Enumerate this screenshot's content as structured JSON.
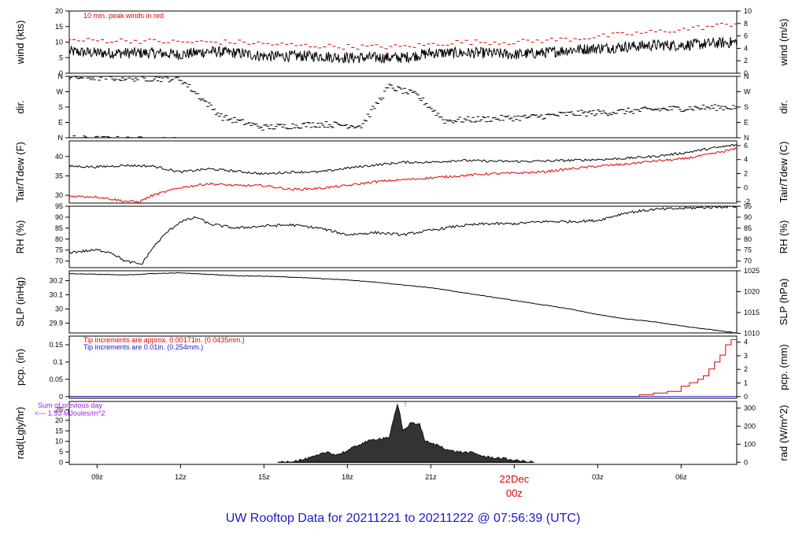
{
  "page_title": "UW Rooftop Data for 20211221  to  20211222 @ 07:56:39  (UTC)",
  "colors": {
    "black": "#000000",
    "red": "#e00000",
    "blue": "#1a1acd",
    "purple": "#a020f0"
  },
  "x_axis": {
    "start_hour": 8,
    "end_hour": 32,
    "ticks": [
      {
        "hour": 9,
        "label": "09z"
      },
      {
        "hour": 12,
        "label": "12z"
      },
      {
        "hour": 15,
        "label": "15z"
      },
      {
        "hour": 18,
        "label": "18z"
      },
      {
        "hour": 21,
        "label": "21z"
      },
      {
        "hour": 24,
        "label": ""
      },
      {
        "hour": 27,
        "label": "03z"
      },
      {
        "hour": 30,
        "label": "06z"
      }
    ],
    "day_label": "22Dec",
    "day_label_time": "00z"
  },
  "chart_data": [
    {
      "type": "line",
      "id": "wind",
      "ylabel": "wind (kts)",
      "ylabel_right": "wind (m/s)",
      "ylim": [
        0,
        20
      ],
      "yticks": [
        0,
        5,
        10,
        15,
        20
      ],
      "right_ylim": [
        0,
        10
      ],
      "right_yticks": [
        0,
        2,
        4,
        6,
        8,
        10
      ],
      "annotation": "10 min. peak winds in red",
      "series": [
        {
          "name": "wind",
          "color": "#000000",
          "noise": 1.8,
          "x": [
            8,
            9,
            10,
            11,
            12,
            13,
            14,
            15,
            16,
            17,
            18,
            19,
            20,
            21,
            22,
            23,
            24,
            25,
            26,
            27,
            28,
            29,
            30,
            31,
            32
          ],
          "y": [
            7,
            6.5,
            6.5,
            6.5,
            6,
            7,
            6.5,
            5.5,
            5.5,
            5.5,
            5,
            5,
            5,
            6.5,
            6.5,
            6.5,
            6,
            6.5,
            7.5,
            8,
            8.5,
            9,
            9,
            9.5,
            10
          ]
        },
        {
          "name": "10 min. peak winds",
          "color": "#e00000",
          "noise": 0.8,
          "x": [
            8,
            10,
            12,
            14,
            16,
            18,
            20,
            22,
            24,
            26,
            28,
            30,
            32
          ],
          "y": [
            10.5,
            10.5,
            10,
            10,
            9,
            8.5,
            8.5,
            10,
            10,
            11,
            12.5,
            14,
            16
          ]
        }
      ]
    },
    {
      "type": "scatter",
      "id": "dir",
      "ylabel": "dir.",
      "ylabel_right": "dir.",
      "ylim": [
        0,
        360
      ],
      "yticks": [
        0,
        90,
        180,
        270,
        360
      ],
      "ytick_labels": [
        "N",
        "E",
        "S",
        "W",
        "N"
      ],
      "series": [
        {
          "name": "direction",
          "color": "#000000",
          "noise": 18,
          "x": [
            8,
            10,
            12,
            13.5,
            15,
            17,
            18.5,
            19.5,
            20.5,
            21.5,
            23,
            24.5,
            26,
            27.5,
            29,
            30.5,
            32
          ],
          "y": [
            355,
            350,
            345,
            120,
            60,
            80,
            70,
            300,
            250,
            100,
            110,
            120,
            140,
            150,
            165,
            175,
            180
          ]
        }
      ]
    },
    {
      "type": "line",
      "id": "temp",
      "ylabel": "Tair/Tdew (F)",
      "ylabel_right": "Tair/Tdew (C)",
      "ylim": [
        28,
        44
      ],
      "yticks": [
        30,
        35,
        40
      ],
      "right_ylim": [
        -2.22,
        6.67
      ],
      "right_yticks": [
        -2,
        0,
        2,
        4,
        6
      ],
      "series": [
        {
          "name": "Tair",
          "color": "#000000",
          "noise": 0.3,
          "x": [
            8,
            9,
            10,
            11,
            12,
            13,
            14,
            15,
            16,
            17,
            18,
            19,
            20,
            21,
            22,
            23,
            24,
            25,
            26,
            27,
            28,
            29,
            30,
            31,
            32
          ],
          "y": [
            37.5,
            37.3,
            37.7,
            37.5,
            36,
            36.8,
            36.2,
            35.5,
            36,
            36,
            37,
            37.8,
            38.5,
            38.5,
            39,
            38.8,
            38.7,
            38.8,
            39,
            39.2,
            39.5,
            40,
            40.8,
            42,
            43
          ]
        },
        {
          "name": "Tdew",
          "color": "#e00000",
          "noise": 0.3,
          "x": [
            8,
            9,
            10,
            10.5,
            11,
            12,
            13,
            14,
            15,
            16,
            17,
            18,
            19,
            20,
            21,
            22,
            23,
            24,
            25,
            26,
            27,
            28,
            29,
            30,
            31,
            32
          ],
          "y": [
            29.8,
            29.6,
            28.5,
            28.3,
            30,
            32,
            33,
            32.5,
            32.5,
            31.5,
            31.8,
            32.5,
            33.5,
            34,
            34.5,
            35,
            35.5,
            35.7,
            36,
            36.8,
            37.5,
            38,
            38.8,
            39.3,
            40.5,
            42
          ]
        }
      ]
    },
    {
      "type": "line",
      "id": "rh",
      "ylabel": "RH (%)",
      "ylabel_right": "RH (%)",
      "ylim": [
        67,
        95
      ],
      "yticks": [
        70,
        75,
        80,
        85,
        90,
        95
      ],
      "right_yticks": [
        70,
        75,
        80,
        85,
        90,
        95
      ],
      "series": [
        {
          "name": "RH",
          "color": "#000000",
          "noise": 0.6,
          "x": [
            8,
            9,
            9.5,
            10,
            10.6,
            11,
            11.5,
            12,
            12.6,
            13,
            14,
            15,
            16,
            17,
            18,
            19,
            20,
            21,
            22,
            23,
            24,
            25,
            26,
            27,
            28,
            29,
            30,
            31,
            32
          ],
          "y": [
            74,
            75,
            74,
            70,
            68.5,
            76,
            83,
            88,
            90,
            87,
            85,
            86,
            86.5,
            85,
            82,
            83,
            82,
            84,
            86,
            87,
            87,
            88,
            88,
            88.5,
            92,
            93.5,
            94,
            94.5,
            95
          ]
        }
      ]
    },
    {
      "type": "line",
      "id": "slp",
      "ylabel": "SLP (inHg)",
      "ylabel_right": "SLP (hPa)",
      "ylim": [
        29.83,
        30.27
      ],
      "yticks": [
        29.9,
        30.0,
        30.1,
        30.2
      ],
      "right_ylim": [
        1010.1,
        1025.0
      ],
      "right_yticks": [
        1010,
        1015,
        1020,
        1025
      ],
      "series": [
        {
          "name": "SLP",
          "color": "#000000",
          "noise": 0.002,
          "x": [
            8,
            9,
            10,
            11,
            12,
            13,
            14,
            15,
            16,
            17,
            18,
            19,
            20,
            21,
            22,
            23,
            24,
            25,
            26,
            27,
            28,
            29,
            30,
            31,
            32
          ],
          "y": [
            30.25,
            30.245,
            30.24,
            30.25,
            30.255,
            30.245,
            30.235,
            30.232,
            30.225,
            30.215,
            30.205,
            30.19,
            30.17,
            30.15,
            30.12,
            30.09,
            30.06,
            30.03,
            30.0,
            29.96,
            29.93,
            29.91,
            29.88,
            29.855,
            29.83
          ]
        }
      ]
    },
    {
      "type": "line",
      "id": "pcp",
      "ylabel": "pcp. (in)",
      "ylabel_right": "pcp. (mm)",
      "ylim": [
        -0.005,
        0.175
      ],
      "yticks": [
        0.0,
        0.05,
        0.1,
        0.15
      ],
      "right_ylim": [
        -0.127,
        4.445
      ],
      "right_yticks": [
        0,
        1,
        2,
        3,
        4
      ],
      "annotations": [
        {
          "text": "Tip increments are approx. 0.00171in. (0.0435mm.)",
          "color": "#e00000"
        },
        {
          "text": "Tip increments are 0.01in. (0.254mm.)",
          "color": "#1a1acd"
        }
      ],
      "series": [
        {
          "name": "pcp (0.00171in tips)",
          "color": "#e00000",
          "step": true,
          "x": [
            8,
            27.3,
            28.5,
            29,
            29.5,
            30,
            30.3,
            30.6,
            30.8,
            31,
            31.2,
            31.4,
            31.6,
            31.8,
            32
          ],
          "y": [
            0,
            0,
            0.005,
            0.01,
            0.015,
            0.03,
            0.04,
            0.05,
            0.06,
            0.08,
            0.1,
            0.12,
            0.15,
            0.165,
            0.17
          ]
        },
        {
          "name": "pcp (0.01in tips)",
          "color": "#1a1acd",
          "step": true,
          "x": [
            8,
            32
          ],
          "y": [
            0,
            0
          ]
        }
      ]
    },
    {
      "type": "area",
      "id": "rad",
      "ylabel": "rad(Lgly/hr)",
      "ylabel_right": "rad (W/m^2)",
      "ylim": [
        -1,
        29
      ],
      "yticks": [
        0,
        5,
        10,
        15,
        20,
        25
      ],
      "right_ylim": [
        -11.6,
        336.3
      ],
      "right_yticks": [
        0,
        100,
        200,
        300
      ],
      "annotation_lines": [
        "Sum of previous day",
        "<--- 1.53 MJoules/m^2"
      ],
      "annotation_color": "#a020f0",
      "series": [
        {
          "name": "rad",
          "color": "#000000",
          "noise": 0.6,
          "x": [
            15.5,
            16,
            16.5,
            17,
            17.3,
            17.6,
            18,
            18.5,
            19,
            19.5,
            19.8,
            19.9,
            20.0,
            20.3,
            20.6,
            20.8,
            21.0,
            21.3,
            21.7,
            22,
            22.5,
            23,
            23.5,
            24,
            24.3,
            24.7
          ],
          "y": [
            0,
            0.5,
            1.5,
            3.5,
            5,
            3.5,
            5.5,
            9,
            11,
            12,
            27.5,
            22,
            15,
            19,
            18,
            10,
            9,
            8,
            5.5,
            5,
            4.5,
            2.5,
            2,
            1,
            0.5,
            0
          ]
        }
      ]
    }
  ]
}
